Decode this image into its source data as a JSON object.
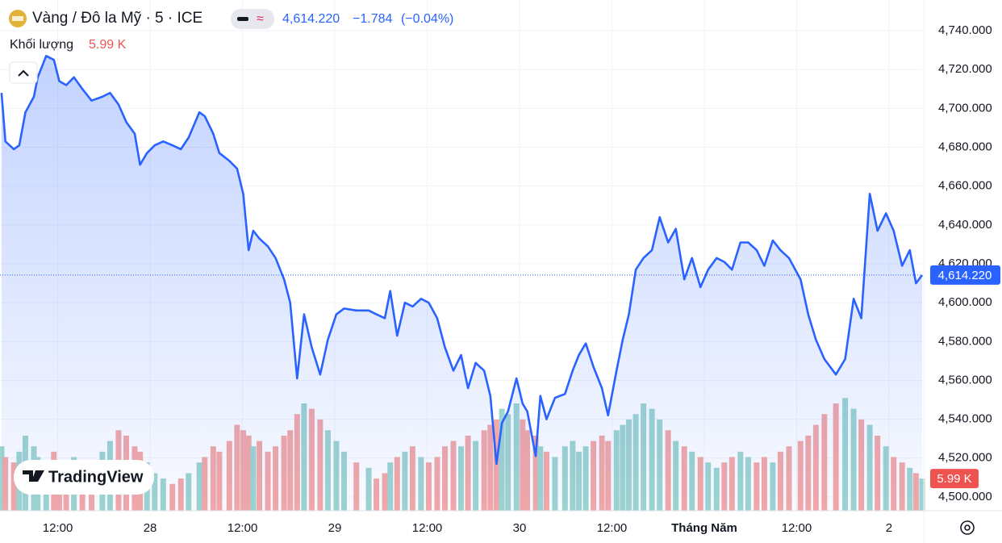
{
  "chart_data": {
    "type": "line",
    "title": "Vàng / Đô la Mỹ · 5 · ICE",
    "quote": {
      "price": "4,614.220",
      "change": "−1.784",
      "change_pct": "(−0.04%)"
    },
    "brand": "TradingView",
    "last_value_label": "4,614.220",
    "x": [
      4.7,
      5.2,
      6.3,
      7.0,
      7.8,
      8.9,
      9.4,
      10.5,
      11.5,
      12.2,
      13.1,
      14.1,
      15.2,
      16.4,
      17.8,
      18.8,
      19.9,
      20.9,
      22.0,
      22.7,
      23.6,
      24.6,
      25.7,
      26.9,
      28.0,
      29.0,
      30.4,
      31.1,
      32.2,
      33.0,
      34.3,
      35.3,
      36.1,
      36.8,
      37.4,
      38.2,
      39.3,
      40.3,
      41.4,
      42.2,
      43.1,
      44.0,
      45.0,
      46.1,
      47.1,
      48.2,
      49.2,
      50.8,
      52.4,
      53.4,
      54.5,
      55.2,
      56.1,
      57.1,
      58.1,
      59.2,
      60.2,
      61.3,
      62.3,
      63.4,
      64.4,
      65.3,
      66.3,
      67.4,
      68.2,
      69.0,
      69.7,
      70.5,
      71.6,
      72.4,
      73.0,
      74.1,
      74.7,
      75.5,
      76.6,
      77.9,
      78.9,
      79.7,
      80.6,
      81.6,
      82.7,
      83.5,
      84.6,
      85.4,
      86.2,
      87.1,
      88.1,
      89.2,
      90.2,
      91.3,
      92.3,
      93.4,
      94.4,
      95.5,
      96.5,
      97.6,
      98.6,
      99.6,
      100.7,
      101.7,
      102.8,
      103.8,
      104.9,
      105.9,
      107.0,
      108.5,
      109.5,
      110.5,
      111.6,
      113.1,
      114.3,
      115.4,
      116.4,
      117.5,
      118.5,
      119.6,
      120.6,
      121.7,
      122.7,
      123.5,
      124.3
    ],
    "series": [
      {
        "name": "Vàng / Đô la Mỹ",
        "color": "#2962ff",
        "values": [
          4708,
          4683,
          4679,
          4681,
          4698,
          4706,
          4716,
          4727,
          4725,
          4714,
          4712,
          4716,
          4710,
          4704,
          4706,
          4708,
          4702,
          4693,
          4687,
          4671,
          4677,
          4681,
          4683,
          4681,
          4679,
          4685,
          4698,
          4696,
          4687,
          4677,
          4673,
          4669,
          4656,
          4627,
          4637,
          4633,
          4629,
          4623,
          4612,
          4600,
          4561,
          4594,
          4577,
          4563,
          4581,
          4594,
          4597,
          4596,
          4596,
          4594,
          4592,
          4606,
          4583,
          4600,
          4598,
          4602,
          4600,
          4592,
          4577,
          4565,
          4573,
          4556,
          4569,
          4565,
          4552,
          4517,
          4538,
          4544,
          4561,
          4548,
          4544,
          4521,
          4552,
          4540,
          4551,
          4553,
          4565,
          4573,
          4579,
          4567,
          4556,
          4542,
          4565,
          4581,
          4594,
          4617,
          4623,
          4627,
          4644,
          4631,
          4638,
          4612,
          4623,
          4608,
          4617,
          4623,
          4621,
          4617,
          4631,
          4631,
          4627,
          4619,
          4632,
          4627,
          4623,
          4612,
          4594,
          4581,
          4571,
          4563,
          4571,
          4602,
          4592,
          4656,
          4637,
          4646,
          4637,
          4619,
          4627,
          4610,
          4614.22
        ]
      }
    ],
    "volume": {
      "name": "Khối lượng",
      "last_label": "5.99 K",
      "up_color": "#9fd5cf",
      "down_color": "#f4a9a7",
      "ylim": [
        0,
        23
      ],
      "values": [
        12,
        10,
        9,
        11,
        14,
        12,
        10,
        9,
        11,
        8,
        9,
        10,
        8,
        9,
        11,
        13,
        15,
        14,
        12,
        11,
        9,
        7,
        6,
        5,
        6,
        7,
        9,
        10,
        12,
        11,
        13,
        16,
        15,
        14,
        12,
        13,
        11,
        12,
        14,
        15,
        18,
        20,
        19,
        17,
        15,
        13,
        11,
        9,
        8,
        6,
        7,
        9,
        10,
        11,
        12,
        10,
        9,
        10,
        12,
        13,
        12,
        14,
        13,
        15,
        16,
        17,
        19,
        18,
        20,
        17,
        15,
        14,
        12,
        11,
        10,
        12,
        13,
        11,
        12,
        13,
        14,
        13,
        15,
        16,
        17,
        18,
        20,
        19,
        17,
        15,
        13,
        12,
        11,
        10,
        9,
        8,
        9,
        10,
        11,
        10,
        9,
        10,
        9,
        11,
        12,
        13,
        14,
        16,
        18,
        20,
        21,
        19,
        17,
        16,
        14,
        12,
        10,
        9,
        8,
        7,
        5.99
      ]
    },
    "xlim": [
      4.5,
      124.3
    ],
    "xticks": [
      {
        "value": 12,
        "label": "12:00"
      },
      {
        "value": 24,
        "label": "28"
      },
      {
        "value": 36,
        "label": "12:00"
      },
      {
        "value": 48,
        "label": "29"
      },
      {
        "value": 60,
        "label": "12:00"
      },
      {
        "value": 72,
        "label": "30"
      },
      {
        "value": 84,
        "label": "12:00"
      },
      {
        "value": 96,
        "label": "Tháng Năm"
      },
      {
        "value": 108,
        "label": "12:00"
      },
      {
        "value": 120,
        "label": "2"
      }
    ],
    "ylim": [
      4492.9,
      4755.8
    ],
    "yticks": [
      {
        "value": 4500,
        "label": "4,500.000"
      },
      {
        "value": 4520,
        "label": "4,520.000"
      },
      {
        "value": 4540,
        "label": "4,540.000"
      },
      {
        "value": 4560,
        "label": "4,560.000"
      },
      {
        "value": 4580,
        "label": "4,580.000"
      },
      {
        "value": 4600,
        "label": "4,600.000"
      },
      {
        "value": 4620,
        "label": "4,620.000"
      },
      {
        "value": 4640,
        "label": "4,640.000"
      },
      {
        "value": 4660,
        "label": "4,660.000"
      },
      {
        "value": 4680,
        "label": "4,680.000"
      },
      {
        "value": 4700,
        "label": "4,700.000"
      },
      {
        "value": 4720,
        "label": "4,720.000"
      },
      {
        "value": 4740,
        "label": "4,740.000"
      }
    ],
    "grid": true
  }
}
